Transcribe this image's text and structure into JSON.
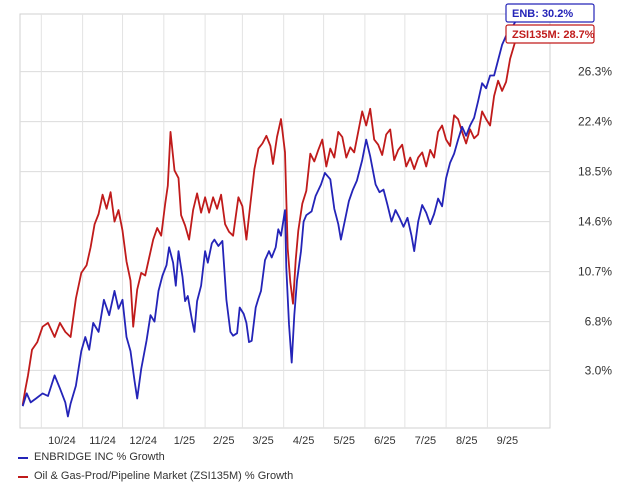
{
  "chart_data": {
    "type": "line",
    "title": "",
    "xlabel": "",
    "ylabel": "",
    "x_tick_labels": [
      "10/24",
      "11/24",
      "12/24",
      "1/25",
      "2/25",
      "3/25",
      "4/25",
      "5/25",
      "6/25",
      "7/25",
      "8/25",
      "9/25"
    ],
    "y_tick_labels": [
      "3.0%",
      "6.8%",
      "10.7%",
      "14.6%",
      "18.5%",
      "22.4%",
      "26.3%"
    ],
    "y_ticks": [
      3.0,
      6.8,
      10.7,
      14.6,
      18.5,
      22.4,
      26.3
    ],
    "ylim": [
      -1.5,
      30.8
    ],
    "grid": true,
    "legend_position": "bottom-left",
    "series": [
      {
        "name": "ENBRIDGE INC % Growth",
        "color": "#2424b8",
        "end_label": "ENB: 30.2%",
        "points": [
          [
            "2024-09-17",
            0.2
          ],
          [
            "2024-09-20",
            1.2
          ],
          [
            "2024-09-23",
            0.5
          ],
          [
            "2024-09-27",
            0.8
          ],
          [
            "2024-10-02",
            1.2
          ],
          [
            "2024-10-06",
            1.0
          ],
          [
            "2024-10-11",
            2.6
          ],
          [
            "2024-10-15",
            1.6
          ],
          [
            "2024-10-19",
            0.5
          ],
          [
            "2024-10-21",
            -0.6
          ],
          [
            "2024-10-23",
            0.4
          ],
          [
            "2024-10-27",
            1.8
          ],
          [
            "2024-10-31",
            4.5
          ],
          [
            "2024-11-03",
            5.6
          ],
          [
            "2024-11-06",
            4.6
          ],
          [
            "2024-11-09",
            6.7
          ],
          [
            "2024-11-13",
            6.0
          ],
          [
            "2024-11-17",
            8.5
          ],
          [
            "2024-11-21",
            7.3
          ],
          [
            "2024-11-25",
            9.2
          ],
          [
            "2024-11-28",
            7.8
          ],
          [
            "2024-12-01",
            8.5
          ],
          [
            "2024-12-04",
            5.6
          ],
          [
            "2024-12-07",
            4.5
          ],
          [
            "2024-12-10",
            2.2
          ],
          [
            "2024-12-12",
            0.8
          ],
          [
            "2024-12-15",
            3.1
          ],
          [
            "2024-12-19",
            5.3
          ],
          [
            "2024-12-22",
            7.3
          ],
          [
            "2024-12-25",
            6.8
          ],
          [
            "2024-12-28",
            9.2
          ],
          [
            "2024-12-31",
            10.4
          ],
          [
            "2025-01-03",
            11.2
          ],
          [
            "2025-01-05",
            12.6
          ],
          [
            "2025-01-08",
            11.4
          ],
          [
            "2025-01-10",
            9.6
          ],
          [
            "2025-01-12",
            12.3
          ],
          [
            "2025-01-15",
            10.3
          ],
          [
            "2025-01-17",
            8.4
          ],
          [
            "2025-01-19",
            8.8
          ],
          [
            "2025-01-22",
            7.0
          ],
          [
            "2025-01-24",
            6.0
          ],
          [
            "2025-01-26",
            8.4
          ],
          [
            "2025-01-29",
            9.6
          ],
          [
            "2025-02-01",
            12.3
          ],
          [
            "2025-02-03",
            11.4
          ],
          [
            "2025-02-06",
            12.9
          ],
          [
            "2025-02-08",
            13.2
          ],
          [
            "2025-02-11",
            12.7
          ],
          [
            "2025-02-14",
            13.1
          ],
          [
            "2025-02-17",
            8.5
          ],
          [
            "2025-02-20",
            6.0
          ],
          [
            "2025-02-22",
            5.7
          ],
          [
            "2025-02-25",
            5.9
          ],
          [
            "2025-02-27",
            7.9
          ],
          [
            "2025-03-02",
            7.4
          ],
          [
            "2025-03-04",
            6.7
          ],
          [
            "2025-03-06",
            5.2
          ],
          [
            "2025-03-08",
            5.3
          ],
          [
            "2025-03-11",
            7.9
          ],
          [
            "2025-03-13",
            8.6
          ],
          [
            "2025-03-15",
            9.2
          ],
          [
            "2025-03-18",
            11.6
          ],
          [
            "2025-03-21",
            12.3
          ],
          [
            "2025-03-23",
            11.8
          ],
          [
            "2025-03-26",
            12.6
          ],
          [
            "2025-03-28",
            14.0
          ],
          [
            "2025-03-30",
            13.5
          ],
          [
            "2025-04-02",
            15.5
          ],
          [
            "2025-04-03",
            11.0
          ],
          [
            "2025-04-05",
            6.6
          ],
          [
            "2025-04-07",
            3.6
          ],
          [
            "2025-04-09",
            7.3
          ],
          [
            "2025-04-11",
            10.0
          ],
          [
            "2025-04-14",
            12.3
          ],
          [
            "2025-04-16",
            14.6
          ],
          [
            "2025-04-18",
            15.1
          ],
          [
            "2025-04-22",
            15.4
          ],
          [
            "2025-04-25",
            16.6
          ],
          [
            "2025-04-29",
            17.5
          ],
          [
            "2025-05-02",
            18.4
          ],
          [
            "2025-05-06",
            17.9
          ],
          [
            "2025-05-09",
            15.6
          ],
          [
            "2025-05-12",
            14.4
          ],
          [
            "2025-05-14",
            13.2
          ],
          [
            "2025-05-17",
            14.7
          ],
          [
            "2025-05-20",
            16.2
          ],
          [
            "2025-05-23",
            17.1
          ],
          [
            "2025-05-26",
            17.8
          ],
          [
            "2025-05-30",
            19.4
          ],
          [
            "2025-06-02",
            21.0
          ],
          [
            "2025-06-05",
            19.7
          ],
          [
            "2025-06-09",
            17.5
          ],
          [
            "2025-06-12",
            16.9
          ],
          [
            "2025-06-15",
            17.1
          ],
          [
            "2025-06-18",
            15.9
          ],
          [
            "2025-06-21",
            14.6
          ],
          [
            "2025-06-24",
            15.5
          ],
          [
            "2025-06-27",
            14.9
          ],
          [
            "2025-06-30",
            14.2
          ],
          [
            "2025-07-03",
            14.9
          ],
          [
            "2025-07-06",
            13.5
          ],
          [
            "2025-07-08",
            12.3
          ],
          [
            "2025-07-11",
            14.6
          ],
          [
            "2025-07-14",
            15.9
          ],
          [
            "2025-07-17",
            15.3
          ],
          [
            "2025-07-20",
            14.4
          ],
          [
            "2025-07-23",
            15.2
          ],
          [
            "2025-07-26",
            16.4
          ],
          [
            "2025-07-29",
            15.8
          ],
          [
            "2025-08-01",
            18.0
          ],
          [
            "2025-08-04",
            19.2
          ],
          [
            "2025-08-07",
            19.9
          ],
          [
            "2025-08-10",
            21.0
          ],
          [
            "2025-08-13",
            22.0
          ],
          [
            "2025-08-16",
            21.3
          ],
          [
            "2025-08-19",
            22.1
          ],
          [
            "2025-08-22",
            22.7
          ],
          [
            "2025-08-25",
            24.0
          ],
          [
            "2025-08-28",
            25.4
          ],
          [
            "2025-08-31",
            25.0
          ],
          [
            "2025-09-03",
            26.0
          ],
          [
            "2025-09-06",
            26.0
          ],
          [
            "2025-09-09",
            27.2
          ],
          [
            "2025-09-12",
            28.4
          ],
          [
            "2025-09-15",
            29.1
          ],
          [
            "2025-09-18",
            29.5
          ],
          [
            "2025-09-22",
            30.2
          ]
        ]
      },
      {
        "name": "Oil & Gas-Prod/Pipeline Market (ZSI135M) % Growth",
        "color": "#c01b1b",
        "end_label": "ZSI135M: 28.7%",
        "points": [
          [
            "2024-09-17",
            0.3
          ],
          [
            "2024-09-19",
            1.5
          ],
          [
            "2024-09-21",
            2.6
          ],
          [
            "2024-09-24",
            4.6
          ],
          [
            "2024-09-28",
            5.2
          ],
          [
            "2024-10-02",
            6.4
          ],
          [
            "2024-10-06",
            6.7
          ],
          [
            "2024-10-11",
            5.6
          ],
          [
            "2024-10-15",
            6.7
          ],
          [
            "2024-10-19",
            6.0
          ],
          [
            "2024-10-23",
            5.6
          ],
          [
            "2024-10-27",
            8.6
          ],
          [
            "2024-10-31",
            10.6
          ],
          [
            "2024-11-04",
            11.2
          ],
          [
            "2024-11-07",
            12.6
          ],
          [
            "2024-11-10",
            14.4
          ],
          [
            "2024-11-13",
            15.2
          ],
          [
            "2024-11-16",
            16.7
          ],
          [
            "2024-11-19",
            15.6
          ],
          [
            "2024-11-22",
            16.9
          ],
          [
            "2024-11-25",
            14.6
          ],
          [
            "2024-11-28",
            15.5
          ],
          [
            "2024-12-01",
            13.9
          ],
          [
            "2024-12-04",
            11.5
          ],
          [
            "2024-12-07",
            10.0
          ],
          [
            "2024-12-09",
            6.4
          ],
          [
            "2024-12-12",
            9.3
          ],
          [
            "2024-12-15",
            10.6
          ],
          [
            "2024-12-18",
            10.4
          ],
          [
            "2024-12-21",
            11.8
          ],
          [
            "2024-12-24",
            13.2
          ],
          [
            "2024-12-27",
            14.1
          ],
          [
            "2024-12-30",
            13.5
          ],
          [
            "2025-01-02",
            16.0
          ],
          [
            "2025-01-04",
            17.4
          ],
          [
            "2025-01-06",
            21.6
          ],
          [
            "2025-01-09",
            18.6
          ],
          [
            "2025-01-12",
            18.0
          ],
          [
            "2025-01-14",
            15.1
          ],
          [
            "2025-01-17",
            14.3
          ],
          [
            "2025-01-20",
            13.2
          ],
          [
            "2025-01-23",
            15.5
          ],
          [
            "2025-01-26",
            16.8
          ],
          [
            "2025-01-29",
            15.3
          ],
          [
            "2025-02-01",
            16.5
          ],
          [
            "2025-02-04",
            15.3
          ],
          [
            "2025-02-07",
            16.5
          ],
          [
            "2025-02-10",
            15.6
          ],
          [
            "2025-02-13",
            16.7
          ],
          [
            "2025-02-16",
            14.4
          ],
          [
            "2025-02-19",
            13.8
          ],
          [
            "2025-02-22",
            13.5
          ],
          [
            "2025-02-26",
            16.5
          ],
          [
            "2025-03-01",
            15.8
          ],
          [
            "2025-03-04",
            13.2
          ],
          [
            "2025-03-07",
            16.0
          ],
          [
            "2025-03-10",
            18.7
          ],
          [
            "2025-03-13",
            20.3
          ],
          [
            "2025-03-16",
            20.7
          ],
          [
            "2025-03-19",
            21.3
          ],
          [
            "2025-03-22",
            20.5
          ],
          [
            "2025-03-24",
            19.1
          ],
          [
            "2025-03-27",
            21.2
          ],
          [
            "2025-03-30",
            22.6
          ],
          [
            "2025-04-02",
            20.0
          ],
          [
            "2025-04-04",
            12.5
          ],
          [
            "2025-04-06",
            9.9
          ],
          [
            "2025-04-08",
            8.2
          ],
          [
            "2025-04-10",
            11.6
          ],
          [
            "2025-04-12",
            13.9
          ],
          [
            "2025-04-15",
            16.0
          ],
          [
            "2025-04-18",
            17.0
          ],
          [
            "2025-04-21",
            19.9
          ],
          [
            "2025-04-24",
            19.3
          ],
          [
            "2025-04-27",
            20.2
          ],
          [
            "2025-04-30",
            21.0
          ],
          [
            "2025-05-03",
            18.9
          ],
          [
            "2025-05-06",
            20.3
          ],
          [
            "2025-05-09",
            19.6
          ],
          [
            "2025-05-12",
            21.6
          ],
          [
            "2025-05-15",
            21.2
          ],
          [
            "2025-05-18",
            19.6
          ],
          [
            "2025-05-21",
            20.4
          ],
          [
            "2025-05-24",
            20.0
          ],
          [
            "2025-05-27",
            21.6
          ],
          [
            "2025-05-30",
            23.2
          ],
          [
            "2025-06-02",
            22.1
          ],
          [
            "2025-06-05",
            23.4
          ],
          [
            "2025-06-08",
            21.0
          ],
          [
            "2025-06-11",
            20.6
          ],
          [
            "2025-06-14",
            19.8
          ],
          [
            "2025-06-17",
            21.4
          ],
          [
            "2025-06-20",
            21.8
          ],
          [
            "2025-06-23",
            19.4
          ],
          [
            "2025-06-26",
            20.2
          ],
          [
            "2025-06-29",
            20.6
          ],
          [
            "2025-07-02",
            18.9
          ],
          [
            "2025-07-05",
            19.6
          ],
          [
            "2025-07-08",
            18.7
          ],
          [
            "2025-07-11",
            19.6
          ],
          [
            "2025-07-14",
            20.0
          ],
          [
            "2025-07-17",
            18.9
          ],
          [
            "2025-07-20",
            20.2
          ],
          [
            "2025-07-23",
            19.6
          ],
          [
            "2025-07-26",
            21.6
          ],
          [
            "2025-07-29",
            22.1
          ],
          [
            "2025-08-01",
            21.0
          ],
          [
            "2025-08-04",
            20.5
          ],
          [
            "2025-08-07",
            22.9
          ],
          [
            "2025-08-10",
            22.6
          ],
          [
            "2025-08-13",
            21.6
          ],
          [
            "2025-08-16",
            20.7
          ],
          [
            "2025-08-19",
            21.8
          ],
          [
            "2025-08-22",
            21.1
          ],
          [
            "2025-08-25",
            21.4
          ],
          [
            "2025-08-28",
            23.2
          ],
          [
            "2025-08-31",
            22.6
          ],
          [
            "2025-09-03",
            22.1
          ],
          [
            "2025-09-06",
            24.4
          ],
          [
            "2025-09-09",
            25.6
          ],
          [
            "2025-09-12",
            24.8
          ],
          [
            "2025-09-15",
            25.5
          ],
          [
            "2025-09-18",
            27.3
          ],
          [
            "2025-09-22",
            28.7
          ]
        ]
      }
    ]
  }
}
